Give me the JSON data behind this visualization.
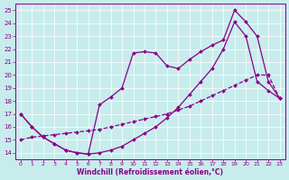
{
  "xlabel": "Windchill (Refroidissement éolien,°C)",
  "background_color": "#c8ecec",
  "line_color": "#880088",
  "xlim_min": -0.5,
  "xlim_max": 23.5,
  "ylim_min": 13.5,
  "ylim_max": 25.5,
  "yticks": [
    14,
    15,
    16,
    17,
    18,
    19,
    20,
    21,
    22,
    23,
    24,
    25
  ],
  "xticks": [
    0,
    1,
    2,
    3,
    4,
    5,
    6,
    7,
    8,
    9,
    10,
    11,
    12,
    13,
    14,
    15,
    16,
    17,
    18,
    19,
    20,
    21,
    22,
    23
  ],
  "line_diag_x": [
    0,
    1,
    2,
    3,
    4,
    5,
    6,
    7,
    8,
    9,
    10,
    11,
    12,
    13,
    14,
    15,
    16,
    17,
    18,
    19,
    20,
    21,
    22,
    23
  ],
  "line_diag_y": [
    15.0,
    15.2,
    15.3,
    15.4,
    15.5,
    15.6,
    15.7,
    15.8,
    16.0,
    16.2,
    16.4,
    16.6,
    16.8,
    17.0,
    17.3,
    17.6,
    18.0,
    18.4,
    18.8,
    19.2,
    19.6,
    20.0,
    20.0,
    18.2
  ],
  "line_bottom_x": [
    0,
    1,
    2,
    3,
    4,
    5,
    6,
    7,
    8,
    9,
    10,
    11,
    12,
    13,
    14,
    15,
    16,
    17,
    18,
    19,
    20,
    21,
    22,
    23
  ],
  "line_bottom_y": [
    17.0,
    16.0,
    15.2,
    14.7,
    14.2,
    14.0,
    13.9,
    14.0,
    14.2,
    14.5,
    15.0,
    15.5,
    16.0,
    16.7,
    17.5,
    18.5,
    19.5,
    20.5,
    22.0,
    24.1,
    23.0,
    19.5,
    18.8,
    18.2
  ],
  "line_top_x": [
    0,
    1,
    2,
    3,
    4,
    5,
    6,
    7,
    8,
    9,
    10,
    11,
    12,
    13,
    14,
    15,
    16,
    17,
    18,
    19,
    20,
    21,
    22,
    23
  ],
  "line_top_y": [
    17.0,
    16.0,
    15.2,
    14.7,
    14.2,
    14.0,
    13.9,
    17.7,
    18.3,
    19.0,
    21.7,
    21.8,
    21.7,
    20.7,
    20.5,
    21.2,
    21.8,
    22.3,
    22.7,
    25.0,
    24.1,
    23.0,
    19.5,
    18.2
  ]
}
